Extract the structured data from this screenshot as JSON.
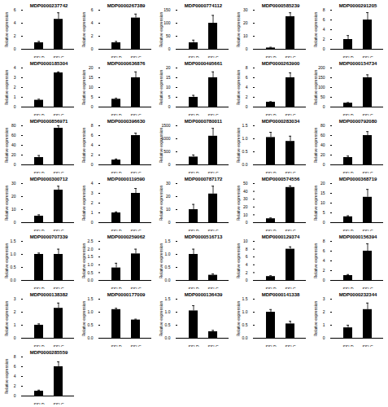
{
  "chart_data": [
    {
      "type": "bar",
      "title": "MDP0000237742",
      "categories": [
        "SSLD",
        "SSLC"
      ],
      "values": [
        1.0,
        4.6
      ],
      "errors": [
        0.2,
        1.0
      ],
      "ylim": [
        0,
        6
      ],
      "yticks": [
        0,
        2,
        4,
        6
      ],
      "ylabel": "Relative expression",
      "color": "#000000"
    },
    {
      "type": "bar",
      "title": "MDP0000267389",
      "categories": [
        "SSLD",
        "SSLC"
      ],
      "values": [
        1.0,
        4.8
      ],
      "errors": [
        0.2,
        0.6
      ],
      "ylim": [
        0,
        6
      ],
      "yticks": [
        0,
        2,
        4,
        6
      ],
      "ylabel": "Relative expression",
      "color": "#000000"
    },
    {
      "type": "bar",
      "title": "MDP0000774112",
      "categories": [
        "SSLD",
        "SSLC"
      ],
      "values": [
        25,
        100
      ],
      "errors": [
        10,
        30
      ],
      "ylim": [
        0,
        150
      ],
      "yticks": [
        0,
        50,
        100,
        150
      ],
      "ylabel": "Relative expression",
      "color": "#000000"
    },
    {
      "type": "bar",
      "title": "MDP0000585239",
      "categories": [
        "SSLD",
        "SSLC"
      ],
      "values": [
        1,
        25
      ],
      "errors": [
        0.5,
        3
      ],
      "ylim": [
        0,
        30
      ],
      "yticks": [
        0,
        10,
        20,
        30
      ],
      "ylabel": "Relative expression",
      "color": "#000000"
    },
    {
      "type": "bar",
      "title": "MDP0000291205",
      "categories": [
        "SSLD",
        "SSLC"
      ],
      "values": [
        2,
        6
      ],
      "errors": [
        0.8,
        1.5
      ],
      "ylim": [
        0,
        8
      ],
      "yticks": [
        0,
        2,
        4,
        6,
        8
      ],
      "ylabel": "Relative expression",
      "color": "#000000"
    },
    {
      "type": "bar",
      "title": "MDP0000185304",
      "categories": [
        "SSLD",
        "SSLC"
      ],
      "values": [
        0.7,
        3.5
      ],
      "errors": [
        0.1,
        0.1
      ],
      "ylim": [
        0,
        4
      ],
      "yticks": [
        0,
        1,
        2,
        3,
        4
      ],
      "ylabel": "Relative expression",
      "color": "#000000"
    },
    {
      "type": "bar",
      "title": "MDP0000636876",
      "categories": [
        "SSLD",
        "SSLC"
      ],
      "values": [
        4,
        15
      ],
      "errors": [
        0.5,
        3
      ],
      "ylim": [
        0,
        20
      ],
      "yticks": [
        0,
        5,
        10,
        15,
        20
      ],
      "ylabel": "Relative expression",
      "color": "#000000"
    },
    {
      "type": "bar",
      "title": "MDP0000495661",
      "categories": [
        "SSLD",
        "SSLC"
      ],
      "values": [
        5,
        15
      ],
      "errors": [
        1,
        3
      ],
      "ylim": [
        0,
        20
      ],
      "yticks": [
        0,
        5,
        10,
        15,
        20
      ],
      "ylabel": "Relative expression",
      "color": "#000000"
    },
    {
      "type": "bar",
      "title": "MDP0000263900",
      "categories": [
        "SSLD",
        "SSLC"
      ],
      "values": [
        1,
        6
      ],
      "errors": [
        0.1,
        1
      ],
      "ylim": [
        0,
        8
      ],
      "yticks": [
        0,
        2,
        4,
        6,
        8
      ],
      "ylabel": "Relative expression",
      "color": "#000000"
    },
    {
      "type": "bar",
      "title": "MDP0000154734",
      "categories": [
        "SSLD",
        "SSLC"
      ],
      "values": [
        20,
        150
      ],
      "errors": [
        3,
        15
      ],
      "ylim": [
        0,
        200
      ],
      "yticks": [
        0,
        50,
        100,
        150,
        200
      ],
      "ylabel": "Relative expression",
      "color": "#000000"
    },
    {
      "type": "bar",
      "title": "MDP0000856971",
      "categories": [
        "SSLD",
        "SSLC"
      ],
      "values": [
        15,
        75
      ],
      "errors": [
        4,
        5
      ],
      "ylim": [
        0,
        80
      ],
      "yticks": [
        0,
        20,
        40,
        60,
        80
      ],
      "ylabel": "Relative expression",
      "color": "#000000"
    },
    {
      "type": "bar",
      "title": "MDP0000396630",
      "categories": [
        "SSLD",
        "SSLC"
      ],
      "values": [
        1,
        6
      ],
      "errors": [
        0.2,
        0.5
      ],
      "ylim": [
        0,
        8
      ],
      "yticks": [
        0,
        2,
        4,
        6,
        8
      ],
      "ylabel": "Relative expression",
      "color": "#000000"
    },
    {
      "type": "bar",
      "title": "MDP0000780011",
      "categories": [
        "SSLD",
        "SSLC"
      ],
      "values": [
        300,
        1100
      ],
      "errors": [
        80,
        300
      ],
      "ylim": [
        0,
        1500
      ],
      "yticks": [
        0,
        500,
        1000,
        1500
      ],
      "ylabel": "Relative expression",
      "color": "#000000"
    },
    {
      "type": "bar",
      "title": "MDP0000283034",
      "categories": [
        "SSLD",
        "SSLC"
      ],
      "values": [
        1.05,
        0.9
      ],
      "errors": [
        0.2,
        0.2
      ],
      "ylim": [
        0,
        1.5
      ],
      "yticks": [
        {
          "value": 0,
          "label": "0.0"
        },
        {
          "value": 0.5,
          "label": "0.5"
        },
        {
          "value": 1,
          "label": "1.0"
        },
        {
          "value": 1.5,
          "label": "1.5"
        }
      ],
      "ylabel": "Relative expression",
      "color": "#000000"
    },
    {
      "type": "bar",
      "title": "MDP0000792080",
      "categories": [
        "SSLD",
        "SSLC"
      ],
      "values": [
        15,
        60
      ],
      "errors": [
        3,
        8
      ],
      "ylim": [
        0,
        80
      ],
      "yticks": [
        0,
        20,
        40,
        60,
        80
      ],
      "ylabel": "Relative expression",
      "color": "#000000"
    },
    {
      "type": "bar",
      "title": "MDP0000300712",
      "categories": [
        "SSLD",
        "SSLC"
      ],
      "values": [
        5,
        25
      ],
      "errors": [
        1,
        3
      ],
      "ylim": [
        0,
        30
      ],
      "yticks": [
        0,
        10,
        20,
        30
      ],
      "ylabel": "Relative expression",
      "color": "#000000"
    },
    {
      "type": "bar",
      "title": "MDP0000119590",
      "categories": [
        "SSLD",
        "SSLC"
      ],
      "values": [
        1,
        3
      ],
      "errors": [
        0.1,
        0.5
      ],
      "ylim": [
        0,
        4
      ],
      "yticks": [
        0,
        1,
        2,
        3,
        4
      ],
      "ylabel": "Relative expression",
      "color": "#000000"
    },
    {
      "type": "bar",
      "title": "MDP0000787172",
      "categories": [
        "SSLD",
        "SSLC"
      ],
      "values": [
        10,
        22
      ],
      "errors": [
        4,
        6
      ],
      "ylim": [
        0,
        30
      ],
      "yticks": [
        0,
        10,
        20,
        30
      ],
      "ylabel": "Relative expression",
      "color": "#000000"
    },
    {
      "type": "bar",
      "title": "MDP0000574556",
      "categories": [
        "SSLD",
        "SSLC"
      ],
      "values": [
        5,
        45
      ],
      "errors": [
        1,
        2
      ],
      "ylim": [
        0,
        50
      ],
      "yticks": [
        0,
        10,
        20,
        30,
        40,
        50
      ],
      "ylabel": "Relative expression",
      "color": "#000000"
    },
    {
      "type": "bar",
      "title": "MDP0000368719",
      "categories": [
        "SSLD",
        "SSLC"
      ],
      "values": [
        3,
        13
      ],
      "errors": [
        0.5,
        4
      ],
      "ylim": [
        0,
        20
      ],
      "yticks": [
        0,
        5,
        10,
        15,
        20
      ],
      "ylabel": "Relative expression",
      "color": "#000000"
    },
    {
      "type": "bar",
      "title": "MDP0000707339",
      "categories": [
        "SSLD",
        "SSLC"
      ],
      "values": [
        1.0,
        1.0
      ],
      "errors": [
        0.05,
        0.2
      ],
      "ylim": [
        0,
        1.5
      ],
      "yticks": [
        {
          "value": 0,
          "label": "0.0"
        },
        {
          "value": 0.5,
          "label": "0.5"
        },
        {
          "value": 1,
          "label": "1.0"
        },
        {
          "value": 1.5,
          "label": "1.5"
        }
      ],
      "ylabel": "Relative expression",
      "color": "#000000"
    },
    {
      "type": "bar",
      "title": "MDP0000259062",
      "categories": [
        "SSLD",
        "SSLC"
      ],
      "values": [
        0.8,
        1.7
      ],
      "errors": [
        0.3,
        0.3
      ],
      "ylim": [
        0,
        2.5
      ],
      "yticks": [
        {
          "value": 0,
          "label": "0.0"
        },
        {
          "value": 0.5,
          "label": "0.5"
        },
        {
          "value": 1,
          "label": "1.0"
        },
        {
          "value": 1.5,
          "label": "1.5"
        },
        {
          "value": 2,
          "label": "2.0"
        },
        {
          "value": 2.5,
          "label": "2.5"
        }
      ],
      "ylabel": "Relative expression",
      "color": "#000000"
    },
    {
      "type": "bar",
      "title": "MDP0000516713",
      "categories": [
        "SSLD",
        "SSLC"
      ],
      "values": [
        1.0,
        0.2
      ],
      "errors": [
        0.2,
        0.05
      ],
      "ylim": [
        0,
        1.5
      ],
      "yticks": [
        {
          "value": 0,
          "label": "0.0"
        },
        {
          "value": 0.5,
          "label": "0.5"
        },
        {
          "value": 1,
          "label": "1.0"
        },
        {
          "value": 1.5,
          "label": "1.5"
        }
      ],
      "ylabel": "Relative expression",
      "color": "#000000"
    },
    {
      "type": "bar",
      "title": "MDP0000129374",
      "categories": [
        "SSLD",
        "SSLC"
      ],
      "values": [
        1,
        8
      ],
      "errors": [
        0.2,
        0.6
      ],
      "ylim": [
        0,
        10
      ],
      "yticks": [
        0,
        2,
        4,
        6,
        8,
        10
      ],
      "ylabel": "Relative expression",
      "color": "#000000"
    },
    {
      "type": "bar",
      "title": "MDP0000156394",
      "categories": [
        "SSLD",
        "SSLC"
      ],
      "values": [
        1,
        6
      ],
      "errors": [
        0.2,
        1.5
      ],
      "ylim": [
        0,
        8
      ],
      "yticks": [
        0,
        2,
        4,
        6,
        8
      ],
      "ylabel": "Relative expression",
      "color": "#000000"
    },
    {
      "type": "bar",
      "title": "MDP0000138382",
      "categories": [
        "SSLD",
        "SSLC"
      ],
      "values": [
        1,
        2.3
      ],
      "errors": [
        0.1,
        0.4
      ],
      "ylim": [
        0,
        3
      ],
      "yticks": [
        0,
        1,
        2,
        3
      ],
      "ylabel": "Relative expression",
      "color": "#000000"
    },
    {
      "type": "bar",
      "title": "MDP0000177009",
      "categories": [
        "SSLD",
        "SSLC"
      ],
      "values": [
        1.1,
        0.7
      ],
      "errors": [
        0.05,
        0.03
      ],
      "ylim": [
        0,
        1.5
      ],
      "yticks": [
        {
          "value": 0,
          "label": "0.0"
        },
        {
          "value": 0.5,
          "label": "0.5"
        },
        {
          "value": 1,
          "label": "1.0"
        },
        {
          "value": 1.5,
          "label": "1.5"
        }
      ],
      "ylabel": "Relative expression",
      "color": "#000000"
    },
    {
      "type": "bar",
      "title": "MDP0000136439",
      "categories": [
        "SSLD",
        "SSLC"
      ],
      "values": [
        1.05,
        0.25
      ],
      "errors": [
        0.2,
        0.05
      ],
      "ylim": [
        0,
        1.5
      ],
      "yticks": [
        {
          "value": 0,
          "label": "0.0"
        },
        {
          "value": 0.5,
          "label": "0.5"
        },
        {
          "value": 1,
          "label": "1.0"
        },
        {
          "value": 1.5,
          "label": "1.5"
        }
      ],
      "ylabel": "Relative expression",
      "color": "#000000"
    },
    {
      "type": "bar",
      "title": "MDP0000141338",
      "categories": [
        "SSLD",
        "SSLC"
      ],
      "values": [
        1.0,
        0.55
      ],
      "errors": [
        0.1,
        0.1
      ],
      "ylim": [
        0,
        1.5
      ],
      "yticks": [
        {
          "value": 0,
          "label": "0.0"
        },
        {
          "value": 0.5,
          "label": "0.5"
        },
        {
          "value": 1,
          "label": "1.0"
        },
        {
          "value": 1.5,
          "label": "1.5"
        }
      ],
      "ylabel": "Relative expression",
      "color": "#000000"
    },
    {
      "type": "bar",
      "title": "MDP0000232344",
      "categories": [
        "SSLD",
        "SSLC"
      ],
      "values": [
        0.8,
        2.2
      ],
      "errors": [
        0.2,
        0.5
      ],
      "ylim": [
        0,
        3
      ],
      "yticks": [
        0,
        1,
        2,
        3
      ],
      "ylabel": "Relative expression",
      "color": "#000000"
    },
    {
      "type": "bar",
      "title": "MDP0000285559",
      "categories": [
        "SSLD",
        "SSLC"
      ],
      "values": [
        1,
        6
      ],
      "errors": [
        0.2,
        1
      ],
      "ylim": [
        0,
        8
      ],
      "yticks": [
        0,
        2,
        4,
        6,
        8
      ],
      "ylabel": "Relative expression",
      "color": "#000000"
    }
  ]
}
